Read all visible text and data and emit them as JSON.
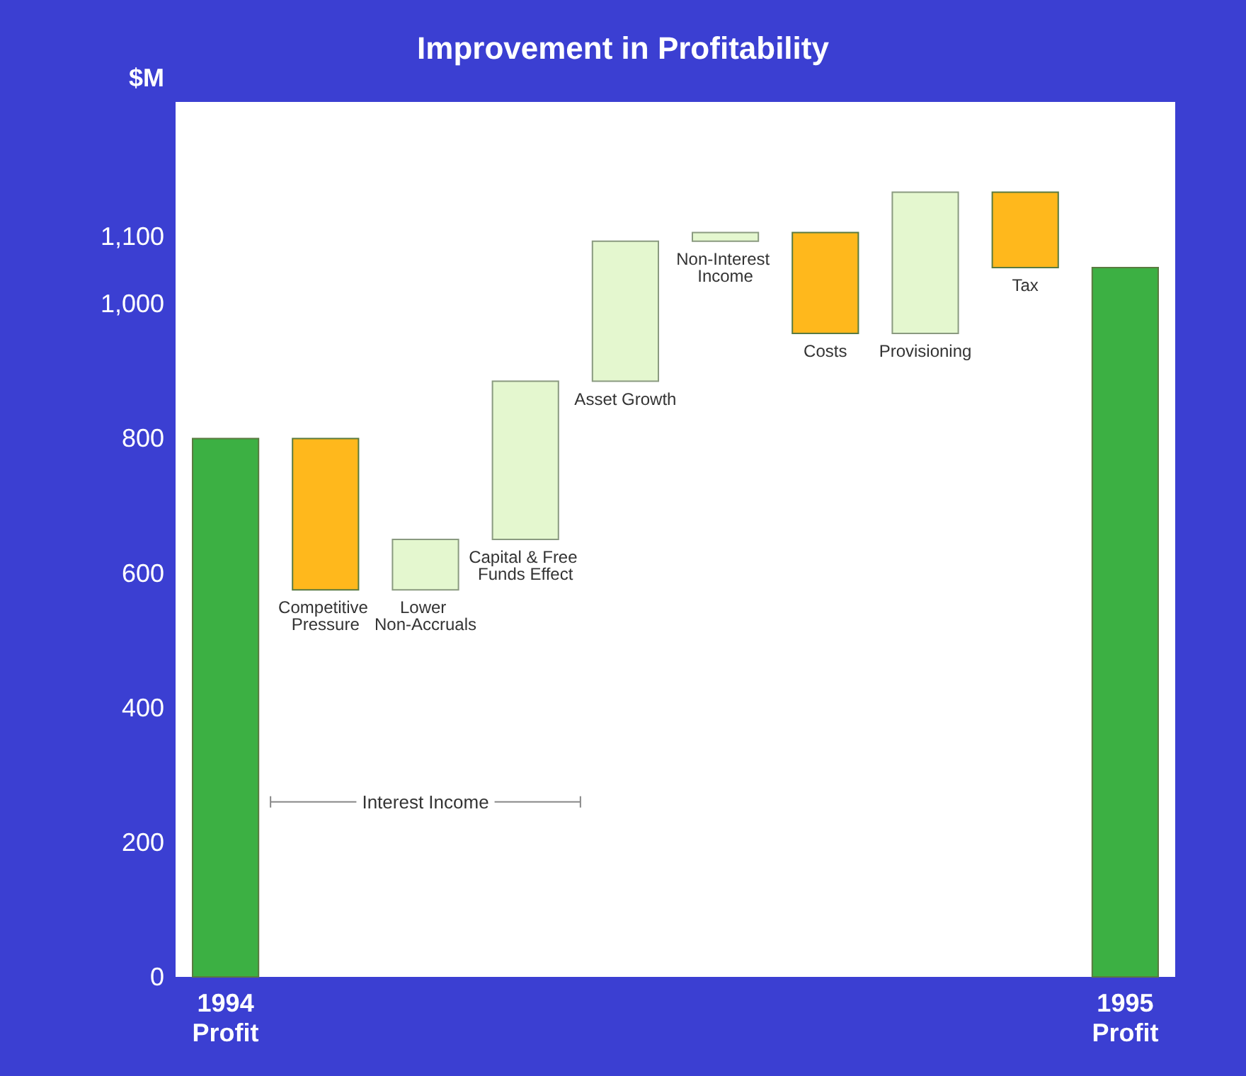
{
  "chart_data": {
    "type": "bar",
    "title": "Improvement in Profitability",
    "ylabel": "$M",
    "categories": [
      "1994 Profit",
      "Competitive Pressure",
      "Lower Non-Accruals",
      "Capital & Free Funds Effect",
      "Asset Growth",
      "Non-Interest Income",
      "Costs",
      "Provisioning",
      "Tax",
      "1995 Profit"
    ],
    "base": [
      0,
      800,
      575,
      650,
      885,
      1093,
      1106,
      956,
      1166,
      0
    ],
    "values": [
      800,
      -225,
      75,
      235,
      208,
      13,
      -150,
      210,
      -112,
      1054
    ],
    "colors": [
      "#3cb043",
      "#ffb81c",
      "#e4f7cf",
      "#e4f7cf",
      "#e4f7cf",
      "#e4f7cf",
      "#ffb81c",
      "#e4f7cf",
      "#ffb81c",
      "#3cb043"
    ],
    "ylim": [
      0,
      1300
    ],
    "yticks": [
      0,
      200,
      400,
      600,
      800,
      {
        "value": 1000,
        "label": "1,000"
      },
      {
        "value": 1100,
        "label": "1,100"
      }
    ],
    "annotations": [
      "Interest Income"
    ],
    "grid": false
  }
}
